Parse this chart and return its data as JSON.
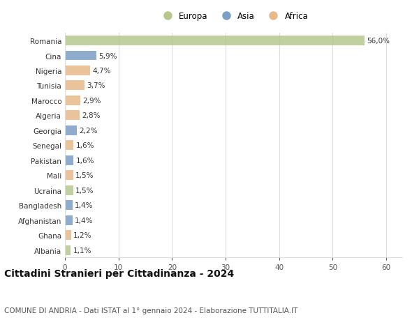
{
  "categories": [
    "Romania",
    "Cina",
    "Nigeria",
    "Tunisia",
    "Marocco",
    "Algeria",
    "Georgia",
    "Senegal",
    "Pakistan",
    "Mali",
    "Ucraina",
    "Bangladesh",
    "Afghanistan",
    "Ghana",
    "Albania"
  ],
  "values": [
    56.0,
    5.9,
    4.7,
    3.7,
    2.9,
    2.8,
    2.2,
    1.6,
    1.6,
    1.5,
    1.5,
    1.4,
    1.4,
    1.2,
    1.1
  ],
  "labels": [
    "56,0%",
    "5,9%",
    "4,7%",
    "3,7%",
    "2,9%",
    "2,8%",
    "2,2%",
    "1,6%",
    "1,6%",
    "1,5%",
    "1,5%",
    "1,4%",
    "1,4%",
    "1,2%",
    "1,1%"
  ],
  "continents": [
    "Europa",
    "Asia",
    "Africa",
    "Africa",
    "Africa",
    "Africa",
    "Asia",
    "Africa",
    "Asia",
    "Africa",
    "Europa",
    "Asia",
    "Asia",
    "Africa",
    "Europa"
  ],
  "colors": {
    "Europa": "#b5c98e",
    "Asia": "#7b9ec7",
    "Africa": "#e8b98a"
  },
  "xlim": [
    0,
    63
  ],
  "xticks": [
    0,
    10,
    20,
    30,
    40,
    50,
    60
  ],
  "title": "Cittadini Stranieri per Cittadinanza - 2024",
  "subtitle": "COMUNE DI ANDRIA - Dati ISTAT al 1° gennaio 2024 - Elaborazione TUTTITALIA.IT",
  "bg_color": "#ffffff",
  "grid_color": "#dddddd",
  "bar_height": 0.65,
  "label_fontsize": 7.5,
  "ytick_fontsize": 7.5,
  "xtick_fontsize": 7.5,
  "title_fontsize": 10,
  "subtitle_fontsize": 7.5,
  "legend_fontsize": 8.5
}
